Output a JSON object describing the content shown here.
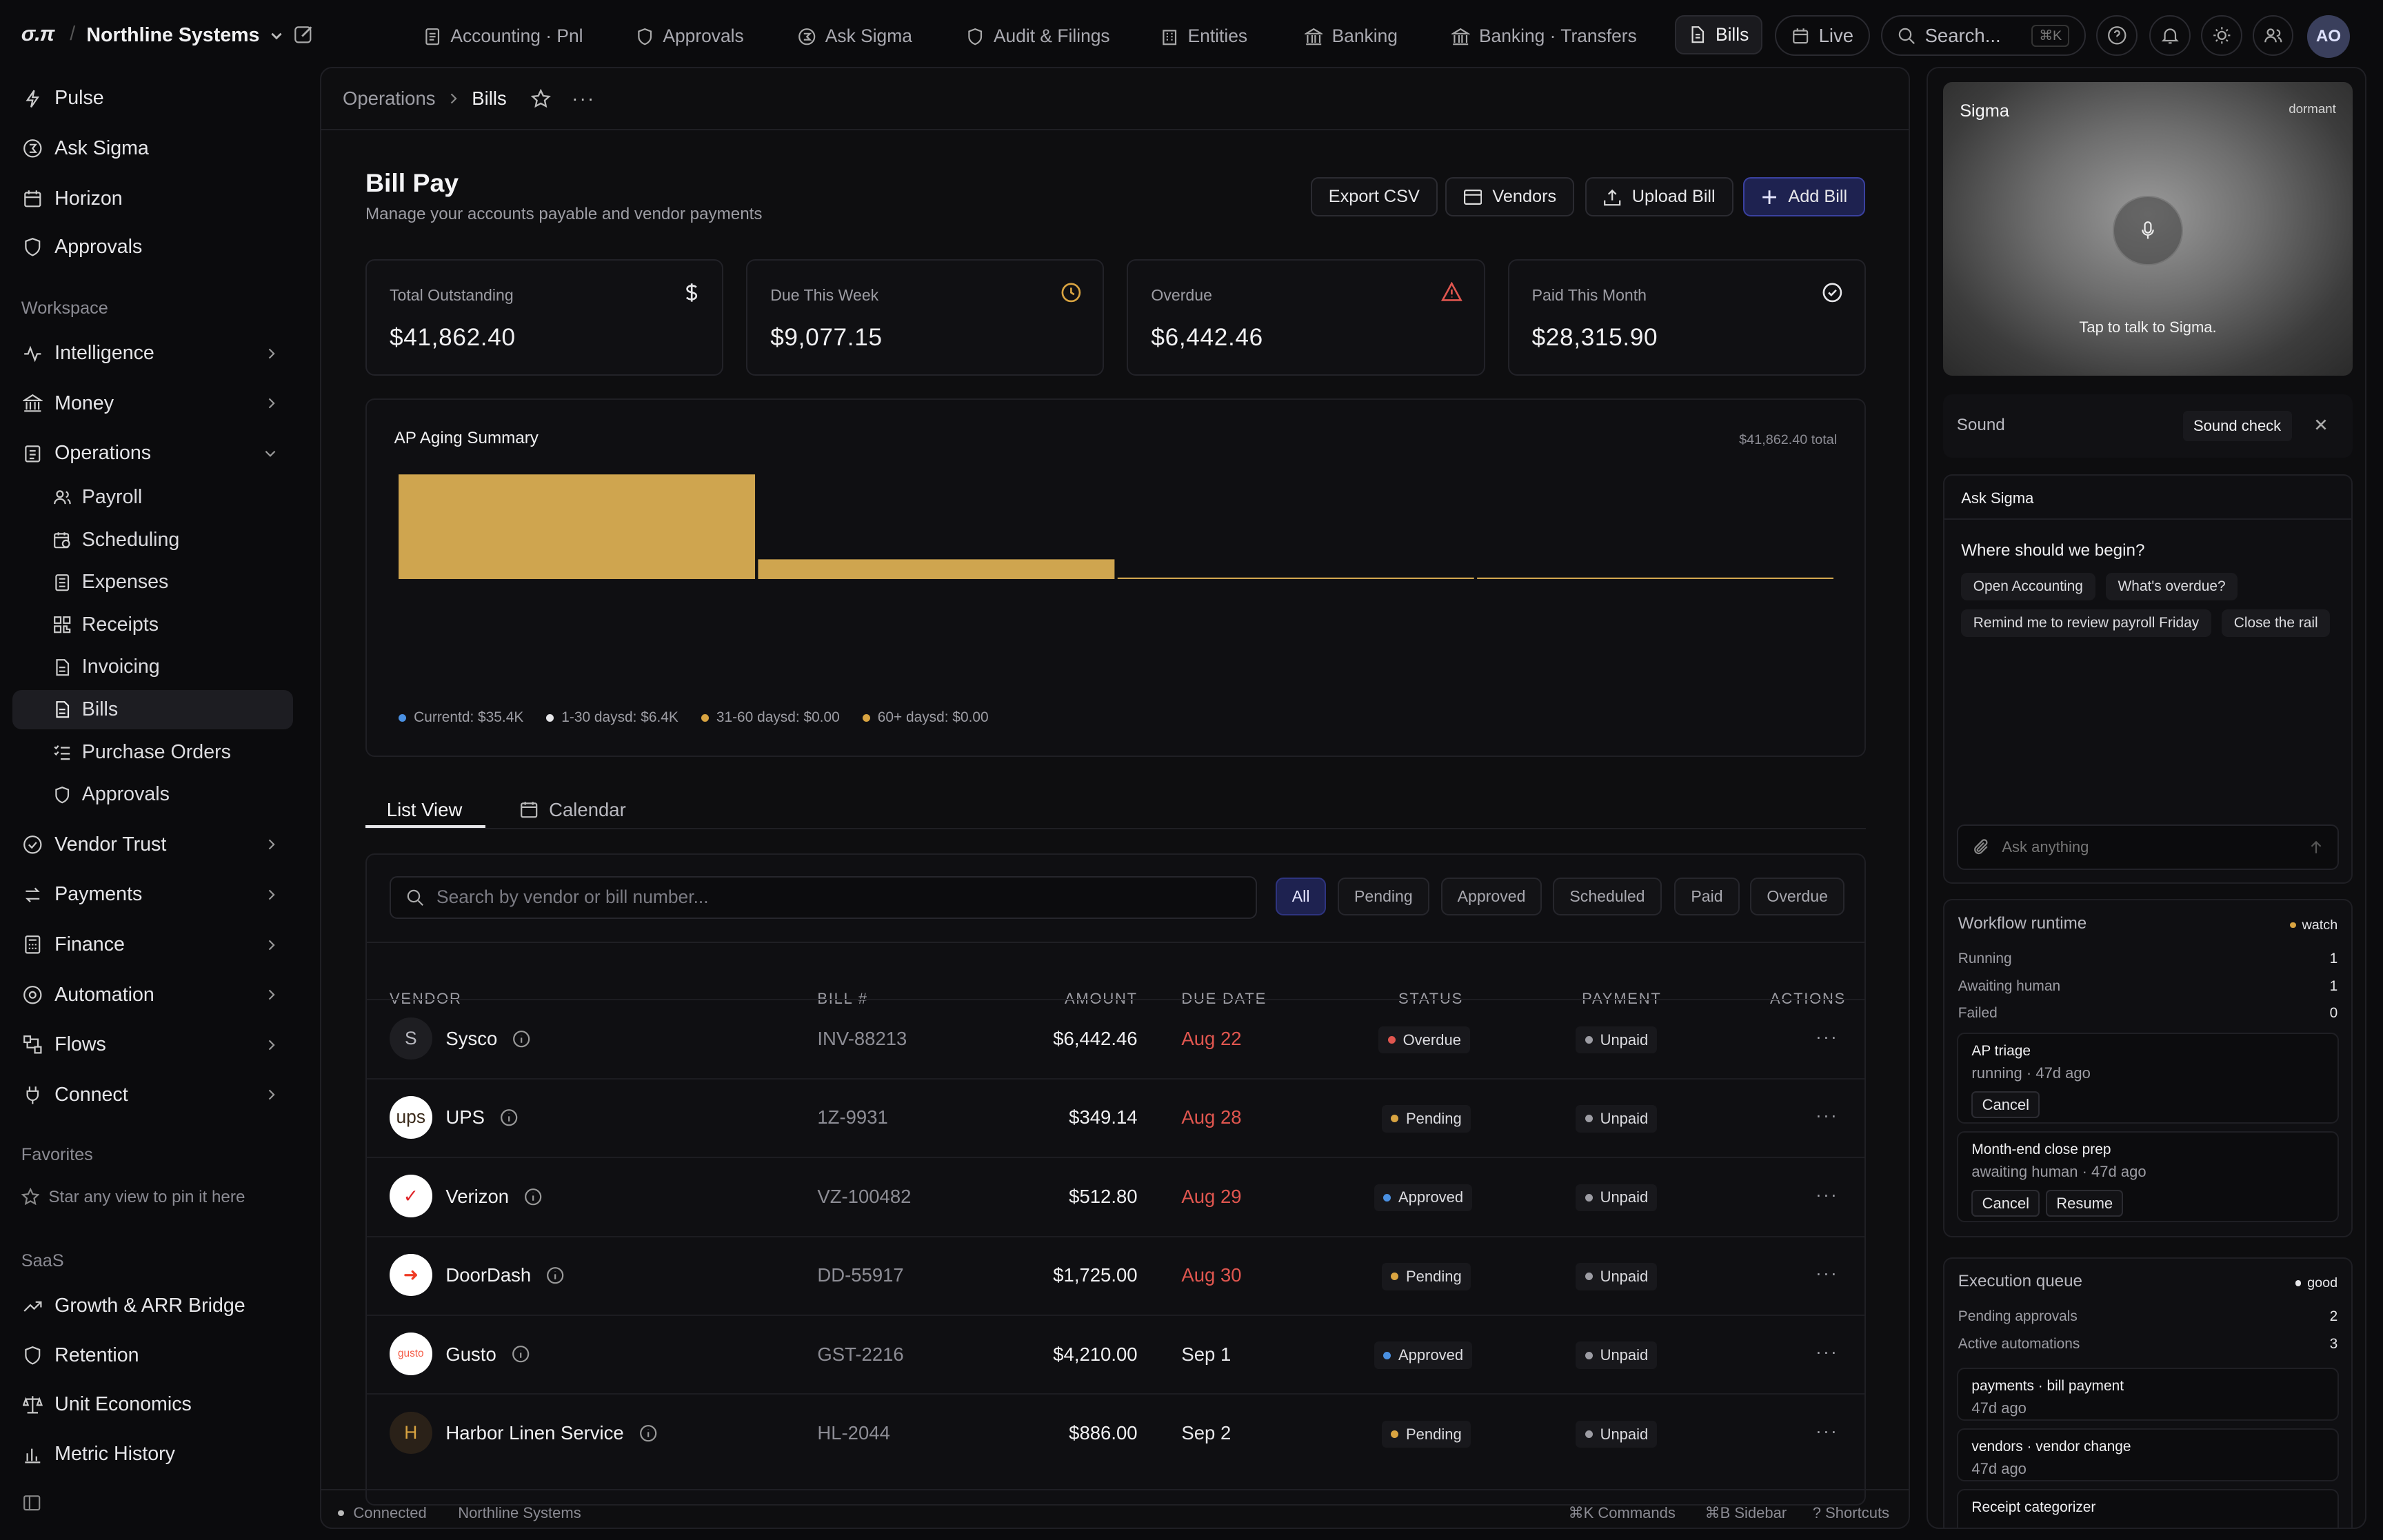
{
  "topbar": {
    "brand": "σ.π",
    "org_name": "Northline Systems",
    "tabs": [
      {
        "label": "Accounting · Pnl",
        "icon": "document-icon"
      },
      {
        "label": "Approvals",
        "icon": "shield-icon"
      },
      {
        "label": "Ask Sigma",
        "icon": "sigma-icon"
      },
      {
        "label": "Audit & Filings",
        "icon": "shield-icon"
      },
      {
        "label": "Entities",
        "icon": "building-icon"
      },
      {
        "label": "Banking",
        "icon": "bank-icon"
      },
      {
        "label": "Banking · Transfers",
        "icon": "bank-icon"
      },
      {
        "label": "Bills",
        "icon": "file-icon",
        "active": true
      }
    ],
    "live_label": "Live",
    "search_placeholder": "Search...",
    "search_shortcut": "⌘K",
    "avatar_initials": "AO"
  },
  "sidebar": {
    "top_items": [
      "Pulse",
      "Ask Sigma",
      "Horizon",
      "Approvals"
    ],
    "workspace_heading": "Workspace",
    "workspace_items": [
      "Intelligence",
      "Money",
      "Operations"
    ],
    "operations_children": [
      "Payroll",
      "Scheduling",
      "Expenses",
      "Receipts",
      "Invoicing",
      "Bills",
      "Purchase Orders",
      "Approvals"
    ],
    "lower_items": [
      "Vendor Trust",
      "Payments",
      "Finance",
      "Automation",
      "Flows",
      "Connect"
    ],
    "favorites_heading": "Favorites",
    "favorites_hint": "Star any view to pin it here",
    "saas_heading": "SaaS",
    "saas_items": [
      "Growth & ARR Bridge",
      "Retention",
      "Unit Economics",
      "Metric History"
    ]
  },
  "breadcrumb": {
    "parent": "Operations",
    "current": "Bills"
  },
  "page": {
    "title": "Bill Pay",
    "subtitle": "Manage your accounts payable and vendor payments",
    "buttons": {
      "export": "Export CSV",
      "vendors": "Vendors",
      "upload": "Upload Bill",
      "add": "Add Bill"
    }
  },
  "stats": [
    {
      "label": "Total Outstanding",
      "value": "$41,862.40",
      "icon": "dollar-icon",
      "color": "#e6e6e9"
    },
    {
      "label": "Due This Week",
      "value": "$9,077.15",
      "icon": "clock-icon",
      "color": "#d9a441"
    },
    {
      "label": "Overdue",
      "value": "$6,442.46",
      "icon": "alert-triangle-icon",
      "color": "#e0564f"
    },
    {
      "label": "Paid This Month",
      "value": "$28,315.90",
      "icon": "check-circle-icon",
      "color": "#e6e6e9"
    }
  ],
  "aging": {
    "title": "AP Aging Summary",
    "total_label": "$41,862.40 total",
    "legend": [
      {
        "label": "Currentd: $35.4K",
        "color": "#4a90e2"
      },
      {
        "label": "1-30 daysd: $6.4K",
        "color": "#e6e6e9"
      },
      {
        "label": "31-60 daysd: $0.00",
        "color": "#d9a441"
      },
      {
        "label": "60+ daysd: $0.00",
        "color": "#d9a441"
      }
    ]
  },
  "chart_data": {
    "type": "bar",
    "title": "AP Aging Summary",
    "categories": [
      "Current",
      "1-30 days",
      "31-60 days",
      "60+ days"
    ],
    "values": [
      35420,
      6442.4,
      0,
      0
    ],
    "ylim": [
      0,
      35420
    ],
    "color": "#cfa54f",
    "grid": false,
    "legend_position": "bottom"
  },
  "view_tabs": {
    "list": "List View",
    "calendar": "Calendar"
  },
  "table": {
    "search_placeholder": "Search by vendor or bill number...",
    "filters": [
      "All",
      "Pending",
      "Approved",
      "Scheduled",
      "Paid",
      "Overdue"
    ],
    "headers": {
      "vendor": "VENDOR",
      "bill": "BILL #",
      "amount": "AMOUNT",
      "due": "DUE DATE",
      "status": "STATUS",
      "payment": "PAYMENT",
      "actions": "ACTIONS"
    },
    "rows": [
      {
        "logo": "S",
        "vendor": "Sysco",
        "bill": "INV-88213",
        "amount": "$6,442.46",
        "due": "Aug 22",
        "due_color": "#e0564f",
        "status": "Overdue",
        "status_color": "#e0564f",
        "payment": "Unpaid",
        "logo_bg": "#1e1e22",
        "logo_fg": "#b9b9c0"
      },
      {
        "logo": "ups",
        "vendor": "UPS",
        "bill": "1Z-9931",
        "amount": "$349.14",
        "due": "Aug 28",
        "due_color": "#e0564f",
        "status": "Pending",
        "status_color": "#d9a441",
        "payment": "Unpaid",
        "logo_bg": "#ffffff",
        "logo_fg": "#3a2a1a"
      },
      {
        "logo": "✓",
        "vendor": "Verizon",
        "bill": "VZ-100482",
        "amount": "$512.80",
        "due": "Aug 29",
        "due_color": "#e0564f",
        "status": "Approved",
        "status_color": "#4a90e2",
        "payment": "Unpaid",
        "logo_bg": "#ffffff",
        "logo_fg": "#e0262a"
      },
      {
        "logo": "➜",
        "vendor": "DoorDash",
        "bill": "DD-55917",
        "amount": "$1,725.00",
        "due": "Aug 30",
        "due_color": "#e0564f",
        "status": "Pending",
        "status_color": "#d9a441",
        "payment": "Unpaid",
        "logo_bg": "#ffffff",
        "logo_fg": "#ef3b24"
      },
      {
        "logo": "gusto",
        "vendor": "Gusto",
        "bill": "GST-2216",
        "amount": "$4,210.00",
        "due": "Sep 1",
        "due_color": "#e6e6e9",
        "status": "Approved",
        "status_color": "#4a90e2",
        "payment": "Unpaid",
        "logo_bg": "#ffffff",
        "logo_fg": "#f45d48"
      },
      {
        "logo": "H",
        "vendor": "Harbor Linen Service",
        "bill": "HL-2044",
        "amount": "$886.00",
        "due": "Sep 2",
        "due_color": "#e6e6e9",
        "status": "Pending",
        "status_color": "#d9a441",
        "payment": "Unpaid",
        "logo_bg": "#2a2118",
        "logo_fg": "#d9a441"
      }
    ]
  },
  "footer": {
    "status": "Connected",
    "org": "Northline Systems",
    "commands": "⌘K Commands",
    "sidebar": "⌘B Sidebar",
    "shortcuts": "? Shortcuts"
  },
  "rail": {
    "sigma_title": "Sigma",
    "sigma_state": "dormant",
    "sigma_hint": "Tap to talk to Sigma.",
    "sound_label": "Sound",
    "sound_check": "Sound check",
    "ask_title": "Ask Sigma",
    "ask_prompt": "Where should we begin?",
    "suggestions": [
      "Open Accounting",
      "What's overdue?",
      "Remind me to review payroll Friday",
      "Close the rail"
    ],
    "ask_placeholder": "Ask anything",
    "workflow": {
      "title": "Workflow runtime",
      "badge": "watch",
      "stats": [
        {
          "k": "Running",
          "v": "1"
        },
        {
          "k": "Awaiting human",
          "v": "1"
        },
        {
          "k": "Failed",
          "v": "0"
        }
      ],
      "jobs": [
        {
          "name": "AP triage",
          "meta": "running · 47d ago",
          "actions": [
            "Cancel"
          ]
        },
        {
          "name": "Month-end close prep",
          "meta": "awaiting human · 47d ago",
          "actions": [
            "Cancel",
            "Resume"
          ]
        }
      ]
    },
    "execution": {
      "title": "Execution queue",
      "badge": "good",
      "stats": [
        {
          "k": "Pending approvals",
          "v": "2"
        },
        {
          "k": "Active automations",
          "v": "3"
        }
      ],
      "items": [
        {
          "name": "payments · bill payment",
          "meta": "47d ago"
        },
        {
          "name": "vendors · vendor change",
          "meta": "47d ago"
        },
        {
          "name": "Receipt categorizer",
          "meta": ""
        }
      ]
    }
  }
}
